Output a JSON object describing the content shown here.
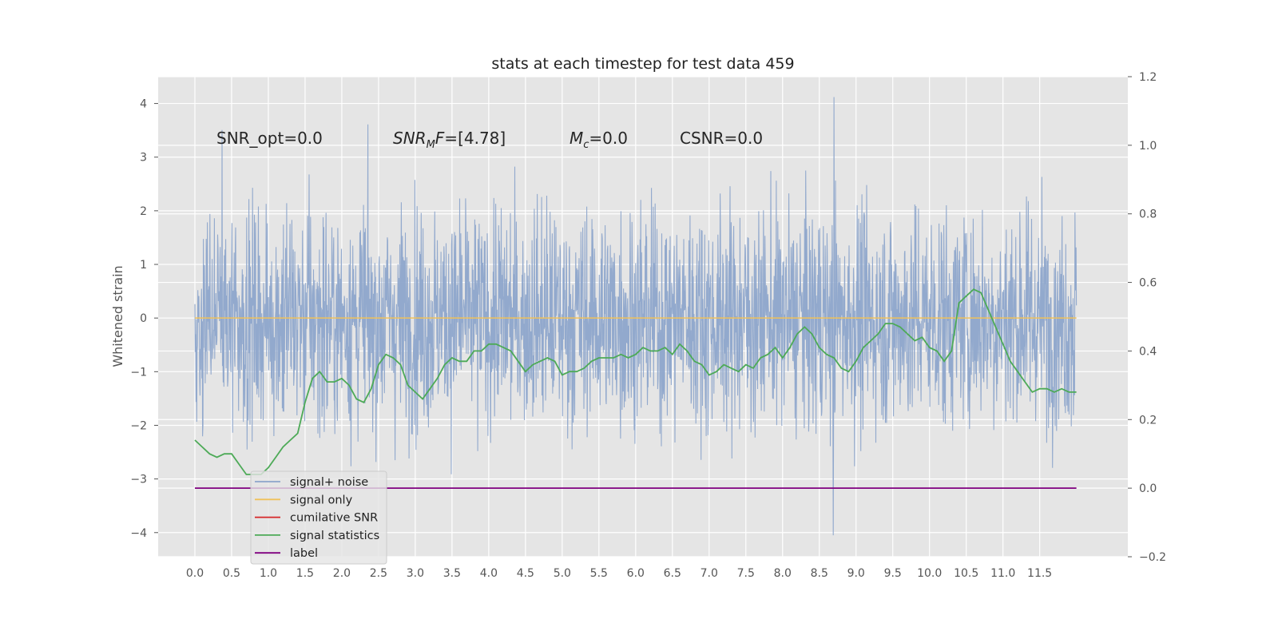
{
  "chart_data": {
    "type": "line",
    "title": "stats at each timestep for test data 459",
    "ylabel": "Whitened strain",
    "y2label": "",
    "xlim": [
      -0.5,
      12.7
    ],
    "ylim": [
      -4.45,
      4.5
    ],
    "y2lim": [
      -0.2,
      1.2
    ],
    "grid": true,
    "legend_position": "lower-left",
    "x_ticks": [
      "0.0",
      "0.5",
      "1.0",
      "1.5",
      "2.0",
      "2.5",
      "3.0",
      "3.5",
      "4.0",
      "4.5",
      "5.0",
      "5.5",
      "6.0",
      "6.5",
      "7.0",
      "7.5",
      "8.0",
      "8.5",
      "9.0",
      "9.5",
      "10.0",
      "10.5",
      "11.0",
      "11.5"
    ],
    "y_ticks": [
      "4",
      "3",
      "2",
      "1",
      "0",
      "−1",
      "−2",
      "−3",
      "−4"
    ],
    "y2_ticks": [
      "1.2",
      "1.0",
      "0.8",
      "0.6",
      "0.4",
      "0.2",
      "0.0",
      "−0.2"
    ],
    "annotations": [
      {
        "id": "snr-opt",
        "text": "SNR_opt=0.0",
        "x": 0.2,
        "y": 3.3
      },
      {
        "id": "snr-mf",
        "text": "[4.78]",
        "x": 2.6,
        "y": 3.3
      },
      {
        "id": "mc",
        "text": "=0.0",
        "x": 5.0,
        "y": 3.3
      },
      {
        "id": "csnr",
        "text": "CSNR=0.0",
        "x": 6.5,
        "y": 3.3
      }
    ],
    "series": [
      {
        "name": "signal+ noise",
        "color": "#8da5cb",
        "axis": "left",
        "description": "dense whitened noise trace, roughly between -2.5 and 2.5 with spikes to about 4.1 and -4.05",
        "x_range": [
          0.0,
          12.0
        ],
        "extremes": {
          "max": 4.12,
          "min": -4.05
        }
      },
      {
        "name": "signal only",
        "color": "#f0c15a",
        "axis": "left",
        "x": [
          0.0,
          12.0
        ],
        "y": [
          0.0,
          0.0
        ]
      },
      {
        "name": "cumilative SNR",
        "color": "#d62728",
        "axis": "right",
        "x": [],
        "y": []
      },
      {
        "name": "signal statistics",
        "color": "#4daa57",
        "axis": "right",
        "x": [
          0.0,
          0.1,
          0.2,
          0.3,
          0.4,
          0.5,
          0.6,
          0.7,
          0.8,
          0.9,
          1.0,
          1.1,
          1.2,
          1.3,
          1.4,
          1.5,
          1.6,
          1.7,
          1.8,
          1.9,
          2.0,
          2.1,
          2.2,
          2.3,
          2.4,
          2.5,
          2.6,
          2.7,
          2.8,
          2.9,
          3.0,
          3.1,
          3.2,
          3.3,
          3.4,
          3.5,
          3.6,
          3.7,
          3.8,
          3.9,
          4.0,
          4.1,
          4.2,
          4.3,
          4.4,
          4.5,
          4.6,
          4.7,
          4.8,
          4.9,
          5.0,
          5.1,
          5.2,
          5.3,
          5.4,
          5.5,
          5.6,
          5.7,
          5.8,
          5.9,
          6.0,
          6.1,
          6.2,
          6.3,
          6.4,
          6.5,
          6.6,
          6.7,
          6.8,
          6.9,
          7.0,
          7.1,
          7.2,
          7.3,
          7.4,
          7.5,
          7.6,
          7.7,
          7.8,
          7.9,
          8.0,
          8.1,
          8.2,
          8.3,
          8.4,
          8.5,
          8.6,
          8.7,
          8.8,
          8.9,
          9.0,
          9.1,
          9.2,
          9.3,
          9.4,
          9.5,
          9.6,
          9.7,
          9.8,
          9.9,
          10.0,
          10.1,
          10.2,
          10.3,
          10.4,
          10.5,
          10.6,
          10.7,
          10.8,
          10.9,
          11.0,
          11.1,
          11.2,
          11.3,
          11.4,
          11.5,
          11.6,
          11.7,
          11.8,
          11.9,
          12.0
        ],
        "y": [
          0.14,
          0.12,
          0.1,
          0.09,
          0.1,
          0.1,
          0.07,
          0.04,
          0.04,
          0.04,
          0.06,
          0.09,
          0.12,
          0.14,
          0.16,
          0.25,
          0.32,
          0.34,
          0.31,
          0.31,
          0.32,
          0.3,
          0.26,
          0.25,
          0.29,
          0.36,
          0.39,
          0.38,
          0.36,
          0.3,
          0.28,
          0.26,
          0.29,
          0.32,
          0.36,
          0.38,
          0.37,
          0.37,
          0.4,
          0.4,
          0.42,
          0.42,
          0.41,
          0.4,
          0.37,
          0.34,
          0.36,
          0.37,
          0.38,
          0.37,
          0.33,
          0.34,
          0.34,
          0.35,
          0.37,
          0.38,
          0.38,
          0.38,
          0.39,
          0.38,
          0.39,
          0.41,
          0.4,
          0.4,
          0.41,
          0.39,
          0.42,
          0.4,
          0.37,
          0.36,
          0.33,
          0.34,
          0.36,
          0.35,
          0.34,
          0.36,
          0.35,
          0.38,
          0.39,
          0.41,
          0.38,
          0.41,
          0.45,
          0.47,
          0.45,
          0.41,
          0.39,
          0.38,
          0.35,
          0.34,
          0.37,
          0.41,
          0.43,
          0.45,
          0.48,
          0.48,
          0.47,
          0.45,
          0.43,
          0.44,
          0.41,
          0.4,
          0.37,
          0.4,
          0.54,
          0.56,
          0.58,
          0.57,
          0.52,
          0.47,
          0.42,
          0.37,
          0.34,
          0.31,
          0.28,
          0.29,
          0.29,
          0.28,
          0.29,
          0.28,
          0.28
        ]
      },
      {
        "name": "label",
        "color": "#800080",
        "axis": "right",
        "x": [
          0.0,
          12.0
        ],
        "y": [
          0.0,
          0.0
        ]
      }
    ]
  }
}
